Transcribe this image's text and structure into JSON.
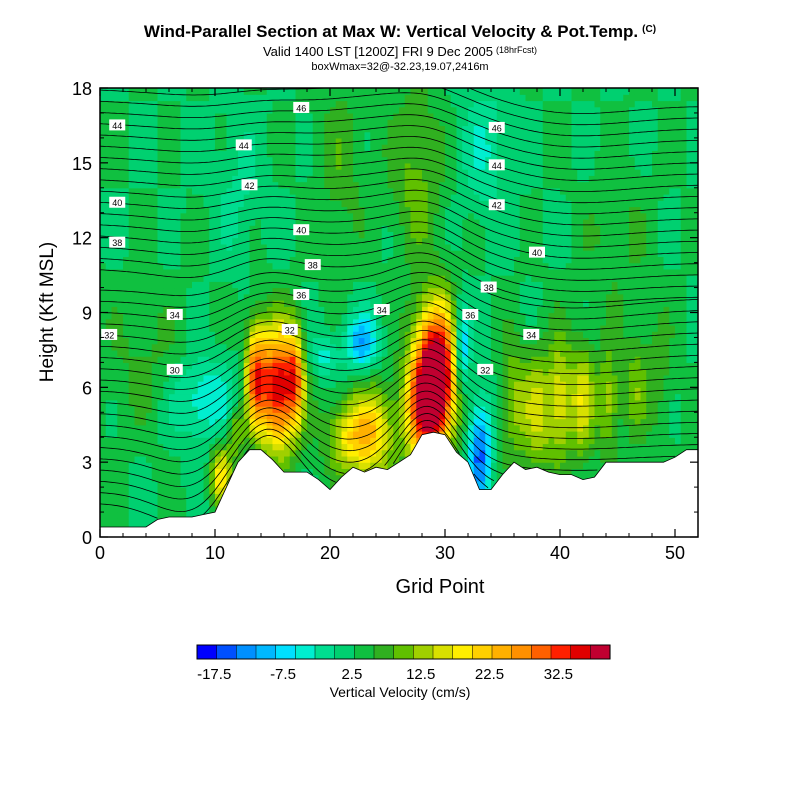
{
  "header": {
    "title": "Wind-Parallel Section at Max W: Vertical Velocity & Pot.Temp.",
    "copyright_mark": "(C)",
    "subtitle": "Valid 1400 LST [1200Z] FRI 9 Dec 2005",
    "forecast_tag": "(18hrFcst)",
    "subtitle2": "boxWmax=32@-32.23,19.07,2416m"
  },
  "chart_data": {
    "type": "heatmap",
    "title": "Wind-Parallel Section at Max W: Vertical Velocity & Pot.Temp.",
    "xlabel": "Grid Point",
    "ylabel": "Height (Kft MSL)",
    "xlim": [
      0,
      52
    ],
    "ylim": [
      0,
      18
    ],
    "x_ticks": [
      0,
      10,
      20,
      30,
      40,
      50
    ],
    "y_ticks": [
      0,
      3,
      6,
      9,
      12,
      15,
      18
    ],
    "grid": false,
    "colorbar": {
      "label": "Vertical Velocity (cm/s)",
      "tick_labels": [
        "-17.5",
        "-7.5",
        "2.5",
        "12.5",
        "22.5",
        "32.5"
      ],
      "tick_values": [
        -17.5,
        -7.5,
        2.5,
        12.5,
        22.5,
        32.5
      ],
      "min": -20,
      "max": 40,
      "step": 2.5,
      "colors": [
        "#0000ff",
        "#0050ff",
        "#0090ff",
        "#00b8ff",
        "#00e0ff",
        "#00eed0",
        "#00dd90",
        "#00d070",
        "#10c040",
        "#30b020",
        "#60c000",
        "#a0d000",
        "#d8e000",
        "#ffee00",
        "#ffd000",
        "#ffb000",
        "#ff9000",
        "#ff6000",
        "#ff2000",
        "#e00000",
        "#c00030"
      ]
    },
    "terrain": {
      "x": [
        0,
        4,
        5,
        6,
        7,
        8,
        9,
        10,
        11,
        12,
        13,
        14,
        15,
        16,
        17,
        18,
        19,
        20,
        21,
        22,
        23,
        24,
        25,
        26,
        27,
        28,
        29,
        30,
        31,
        32,
        33,
        34,
        35,
        36,
        37,
        38,
        39,
        40,
        41,
        42,
        43,
        44,
        45,
        46,
        47,
        48,
        49,
        50,
        51,
        52
      ],
      "height": [
        0.4,
        0.4,
        0.7,
        0.8,
        0.8,
        0.8,
        0.9,
        1.0,
        2.0,
        3.0,
        3.5,
        3.5,
        3.1,
        2.6,
        2.6,
        2.6,
        2.3,
        1.9,
        2.4,
        2.8,
        2.6,
        2.8,
        2.7,
        3.0,
        3.3,
        4.1,
        4.2,
        4.1,
        3.4,
        3.0,
        1.9,
        1.9,
        2.5,
        3.0,
        2.7,
        2.8,
        2.6,
        2.5,
        2.5,
        2.3,
        2.4,
        3.0,
        3.0,
        3.0,
        3.0,
        3.0,
        3.0,
        3.2,
        3.5,
        3.5
      ]
    },
    "w_features": [
      {
        "x": 15.5,
        "height": 6.0,
        "w": 30,
        "sx": 1.2,
        "sy": 1.7
      },
      {
        "x": 13.5,
        "height": 6.5,
        "w": 20,
        "sx": 0.6,
        "sy": 1.5
      },
      {
        "x": 17.0,
        "height": 6.5,
        "w": 14,
        "sx": 0.5,
        "sy": 1.3
      },
      {
        "x": 29.2,
        "height": 6.5,
        "w": 38,
        "sx": 1.3,
        "sy": 1.9
      },
      {
        "x": 28.0,
        "height": 5.0,
        "w": 16,
        "sx": 1.2,
        "sy": 1.5
      },
      {
        "x": 22.0,
        "height": 4.0,
        "w": 14,
        "sx": 1.6,
        "sy": 1.1
      },
      {
        "x": 24.0,
        "height": 4.3,
        "w": 10,
        "sx": 1.2,
        "sy": 1.4
      },
      {
        "x": 10.5,
        "height": 2.5,
        "w": 14,
        "sx": 0.6,
        "sy": 0.9
      },
      {
        "x": 11.8,
        "height": 4.2,
        "w": 9,
        "sx": 0.5,
        "sy": 0.8
      },
      {
        "x": 33.0,
        "height": 3.4,
        "w": -16,
        "sx": 0.7,
        "sy": 1.5
      },
      {
        "x": 31.5,
        "height": 7.5,
        "w": -14,
        "sx": 0.5,
        "sy": 1.3
      },
      {
        "x": 22.8,
        "height": 7.8,
        "w": -12,
        "sx": 1.0,
        "sy": 0.8
      },
      {
        "x": 19.5,
        "height": 7.3,
        "w": -6,
        "sx": 0.9,
        "sy": 0.6
      },
      {
        "x": 9.0,
        "height": 5.5,
        "w": -8,
        "sx": 2.0,
        "sy": 1.2
      },
      {
        "x": 36.0,
        "height": 5.5,
        "w": 8,
        "sx": 0.8,
        "sy": 1.8
      },
      {
        "x": 38.0,
        "height": 5.0,
        "w": 10,
        "sx": 0.8,
        "sy": 1.8
      },
      {
        "x": 40.0,
        "height": 5.5,
        "w": 12,
        "sx": 0.8,
        "sy": 1.8
      },
      {
        "x": 42.0,
        "height": 5.5,
        "w": 11,
        "sx": 0.7,
        "sy": 1.7
      },
      {
        "x": 44.2,
        "height": 5.5,
        "w": 9,
        "sx": 0.7,
        "sy": 1.6
      },
      {
        "x": 46.5,
        "height": 6.0,
        "w": 6,
        "sx": 0.7,
        "sy": 1.6
      },
      {
        "x": 48.5,
        "height": 6.5,
        "w": 4,
        "sx": 1.0,
        "sy": 1.8
      },
      {
        "x": 27.5,
        "height": 14.5,
        "w": 6,
        "sx": 1.6,
        "sy": 2.5
      },
      {
        "x": 21.0,
        "height": 15.0,
        "w": 4,
        "sx": 1.5,
        "sy": 2.5
      },
      {
        "x": 33.5,
        "height": 15.5,
        "w": -5,
        "sx": 1.5,
        "sy": 1.8
      },
      {
        "x": 12.0,
        "height": 14.0,
        "w": -3,
        "sx": 1.5,
        "sy": 2.0
      },
      {
        "x": 4.0,
        "height": 7.0,
        "w": 3,
        "sx": 3.0,
        "sy": 2.0
      },
      {
        "x": 45.0,
        "height": 12.0,
        "w": 3,
        "sx": 2.0,
        "sy": 2.0
      }
    ],
    "theta_contours": [
      {
        "label": "30",
        "baseline_height": 2.5,
        "label_x": 6.5,
        "label_height": 6.7
      },
      {
        "label": "32",
        "baseline_height": 7.8,
        "label_x": 0.8,
        "label_height": 8.1
      },
      {
        "label": "34",
        "baseline_height": 8.9,
        "label_x": 6.5,
        "label_height": 8.9
      },
      {
        "label": "36",
        "baseline_height": 10.0,
        "label_x": 17.5,
        "label_height": 9.7
      },
      {
        "label": "38",
        "baseline_height": 11.8,
        "label_x": 18.5,
        "label_height": 10.9
      },
      {
        "label": "40",
        "baseline_height": 13.4,
        "label_x": 17.5,
        "label_height": 12.3
      },
      {
        "label": "42",
        "baseline_height": 14.7,
        "label_x": 13.0,
        "label_height": 14.1
      },
      {
        "label": "44",
        "baseline_height": 16.4,
        "label_x": 1.5,
        "label_height": 16.5
      },
      {
        "label": "46",
        "baseline_height": 17.9,
        "label_x": 17.5,
        "label_height": 17.2
      }
    ],
    "theta_labels": [
      {
        "label": "30",
        "x": 6.5,
        "height": 6.7
      },
      {
        "label": "32",
        "x": 0.8,
        "height": 8.1
      },
      {
        "label": "34",
        "x": 6.5,
        "height": 8.9
      },
      {
        "label": "32",
        "x": 16.5,
        "height": 8.3
      },
      {
        "label": "36",
        "x": 17.5,
        "height": 9.7
      },
      {
        "label": "38",
        "x": 18.5,
        "height": 10.9
      },
      {
        "label": "40",
        "x": 17.5,
        "height": 12.3
      },
      {
        "label": "42",
        "x": 13.0,
        "height": 14.1
      },
      {
        "label": "44",
        "x": 12.5,
        "height": 15.7
      },
      {
        "label": "46",
        "x": 17.5,
        "height": 17.2
      },
      {
        "label": "44",
        "x": 1.5,
        "height": 16.5
      },
      {
        "label": "40",
        "x": 1.5,
        "height": 13.4
      },
      {
        "label": "38",
        "x": 1.5,
        "height": 11.8
      },
      {
        "label": "34",
        "x": 24.5,
        "height": 9.1
      },
      {
        "label": "36",
        "x": 32.2,
        "height": 8.9
      },
      {
        "label": "38",
        "x": 33.8,
        "height": 10.0
      },
      {
        "label": "32",
        "x": 33.5,
        "height": 6.7
      },
      {
        "label": "34",
        "x": 37.5,
        "height": 8.1
      },
      {
        "label": "40",
        "x": 38.0,
        "height": 11.4
      },
      {
        "label": "42",
        "x": 34.5,
        "height": 13.3
      },
      {
        "label": "44",
        "x": 34.5,
        "height": 14.9
      },
      {
        "label": "46",
        "x": 34.5,
        "height": 16.4
      }
    ]
  }
}
